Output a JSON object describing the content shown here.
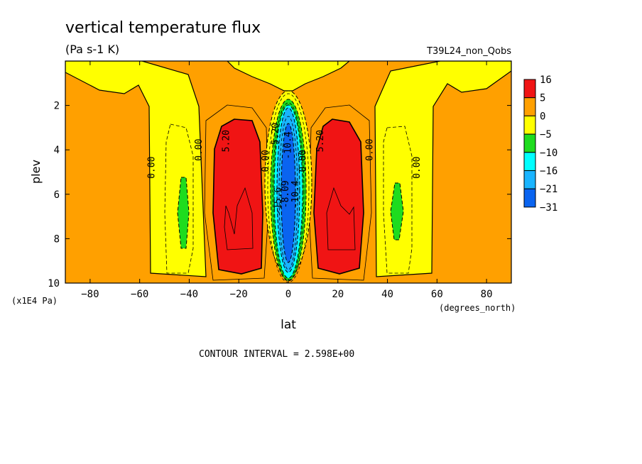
{
  "chart_data": {
    "type": "heatmap",
    "title": "vertical temperature flux",
    "units": "(Pa s-1 K)",
    "dataset": "T39L24_non_Qobs",
    "xlabel": "lat",
    "x_units": "(degrees_north)",
    "ylabel": "plev",
    "y_units": "(x1E4 Pa)",
    "xlim": [
      -90,
      90
    ],
    "ylim": [
      10,
      0
    ],
    "x_ticks": [
      "-80",
      "-60",
      "-40",
      "-20",
      "0",
      "20",
      "40",
      "60",
      "80"
    ],
    "y_ticks": [
      "2",
      "4",
      "6",
      "8",
      "10"
    ],
    "contour_interval": "CONTOUR INTERVAL = 2.598E+00",
    "legend_labels": [
      "16",
      "5",
      "0",
      "−5",
      "−10",
      "−16",
      "−21",
      "−31"
    ],
    "levels": [
      {
        "from": -31,
        "to": -21,
        "color": "#0a64f0"
      },
      {
        "from": -21,
        "to": -16,
        "color": "#19b4ff"
      },
      {
        "from": -16,
        "to": -10,
        "color": "#00ffff"
      },
      {
        "from": -10,
        "to": -5,
        "color": "#1edc1e"
      },
      {
        "from": -5,
        "to": 0,
        "color": "#ffff00"
      },
      {
        "from": 0,
        "to": 5,
        "color": "#ffa000"
      },
      {
        "from": 5,
        "to": 16,
        "color": "#f01414"
      }
    ],
    "contour_labels": [
      "0.00",
      "0.00",
      "5.20",
      "0.00",
      "-5.20",
      "-10.4",
      "-10.4",
      "-8.09",
      "-15.6",
      "0.00",
      "5.20",
      "0.00",
      "0.00"
    ]
  }
}
